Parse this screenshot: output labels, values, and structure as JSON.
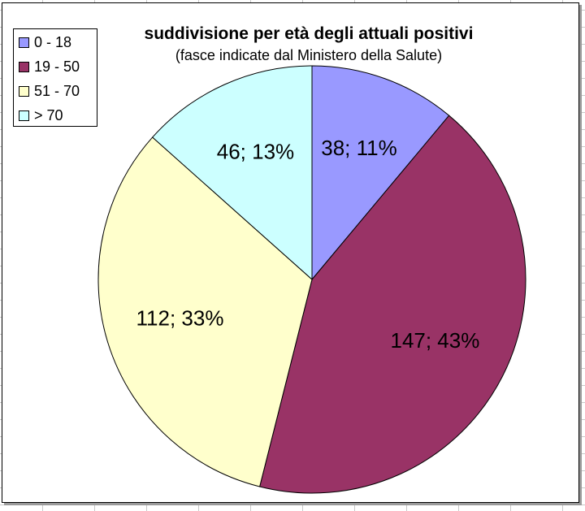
{
  "chart_data": {
    "type": "pie",
    "title": "suddivisione per età degli attuali positivi",
    "subtitle": "(fasce indicate dal Ministero della Salute)",
    "categories": [
      "0 - 18",
      "19 - 50",
      "51 - 70",
      "> 70"
    ],
    "values": [
      38,
      147,
      112,
      46
    ],
    "data_labels": [
      "38; 11%",
      "147; 43%",
      "112; 33%",
      "46; 13%"
    ],
    "colors": [
      "#9999ff",
      "#993366",
      "#ffffcc",
      "#ccffff"
    ],
    "legend_position": "top-left"
  }
}
